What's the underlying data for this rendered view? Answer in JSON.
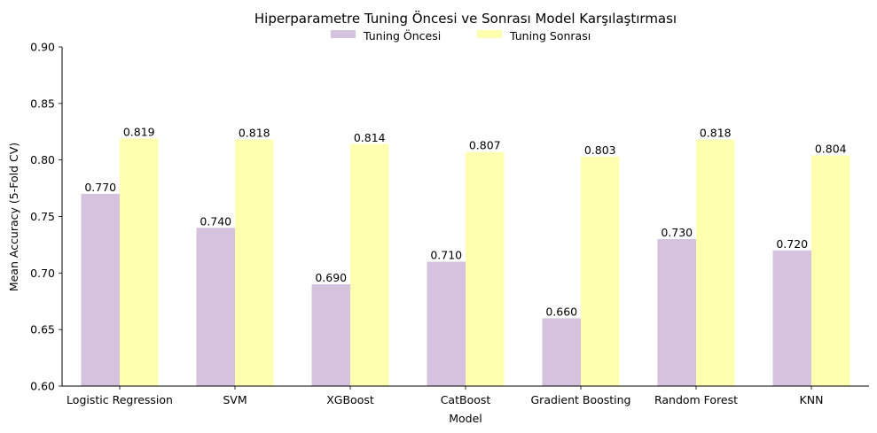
{
  "chart_data": {
    "type": "bar",
    "title": "Hiperparametre Tuning Öncesi ve Sonrası Model Karşılaştırması",
    "xlabel": "Model",
    "ylabel": "Mean Accuracy (5-Fold CV)",
    "ylim": [
      0.6,
      0.9
    ],
    "yticks": [
      "0.60",
      "0.65",
      "0.70",
      "0.75",
      "0.80",
      "0.85",
      "0.90"
    ],
    "grid": false,
    "legend_position": "top-center",
    "categories": [
      "Logistic Regression",
      "SVM",
      "XGBoost",
      "CatBoost",
      "Gradient Boosting",
      "Random Forest",
      "KNN"
    ],
    "series": [
      {
        "name": "Tuning Öncesi",
        "color": "#d4c2de",
        "values": [
          0.77,
          0.74,
          0.69,
          0.71,
          0.66,
          0.73,
          0.72
        ],
        "labels": [
          "0.770",
          "0.740",
          "0.690",
          "0.710",
          "0.660",
          "0.730",
          "0.720"
        ]
      },
      {
        "name": "Tuning Sonrası",
        "color": "#ffffb0",
        "values": [
          0.819,
          0.818,
          0.814,
          0.807,
          0.803,
          0.818,
          0.804
        ],
        "labels": [
          "0.819",
          "0.818",
          "0.814",
          "0.807",
          "0.803",
          "0.818",
          "0.804"
        ]
      }
    ]
  }
}
